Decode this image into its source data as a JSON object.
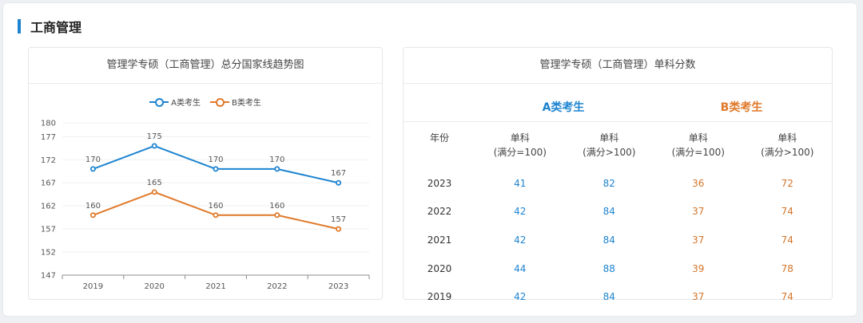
{
  "section": {
    "title": "工商管理"
  },
  "left_panel": {
    "title": "管理学专硕（工商管理）总分国家线趋势图"
  },
  "colors": {
    "a": "#1e84d0",
    "b": "#e0792a",
    "accent": "#1e84d0"
  },
  "chart_data": {
    "type": "line",
    "title": "管理学专硕（工商管理）总分国家线趋势图",
    "categories": [
      "2019",
      "2020",
      "2021",
      "2022",
      "2023"
    ],
    "series": [
      {
        "name": "A类考生",
        "values": [
          170,
          175,
          170,
          170,
          167
        ]
      },
      {
        "name": "B类考生",
        "values": [
          160,
          165,
          160,
          160,
          157
        ]
      }
    ],
    "yticks": [
      147,
      152,
      157,
      162,
      167,
      172,
      177,
      180
    ],
    "ylim": [
      147,
      180
    ],
    "xlabel": "",
    "ylabel": "",
    "legend_position": "top-center"
  },
  "right_panel": {
    "title": "管理学专硕（工商管理）单科分数",
    "group_a": "A类考生",
    "group_b": "B类考生",
    "headers": {
      "year": "年份",
      "a1_line1": "单科",
      "a1_line2": "(满分=100)",
      "a2_line1": "单科",
      "a2_line2": "(满分>100)",
      "b1_line1": "单科",
      "b1_line2": "(满分=100)",
      "b2_line1": "单科",
      "b2_line2": "(满分>100)"
    },
    "rows": [
      {
        "year": "2023",
        "a1": "41",
        "a2": "82",
        "b1": "36",
        "b2": "72"
      },
      {
        "year": "2022",
        "a1": "42",
        "a2": "84",
        "b1": "37",
        "b2": "74"
      },
      {
        "year": "2021",
        "a1": "42",
        "a2": "84",
        "b1": "37",
        "b2": "74"
      },
      {
        "year": "2020",
        "a1": "44",
        "a2": "88",
        "b1": "39",
        "b2": "78"
      },
      {
        "year": "2019",
        "a1": "42",
        "a2": "84",
        "b1": "37",
        "b2": "74"
      }
    ]
  }
}
